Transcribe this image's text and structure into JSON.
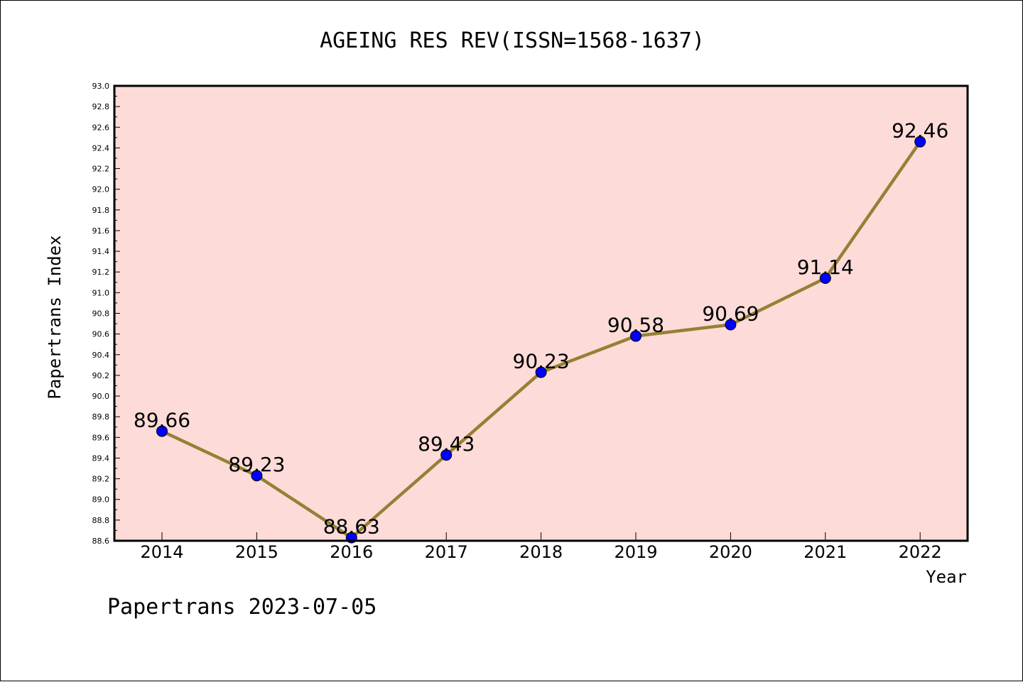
{
  "chart_data": {
    "type": "line",
    "title": "AGEING RES REV(ISSN=1568-1637)",
    "xlabel": "Year",
    "ylabel": "Papertrans Index",
    "categories": [
      "2014",
      "2015",
      "2016",
      "2017",
      "2018",
      "2019",
      "2020",
      "2021",
      "2022"
    ],
    "series": [
      {
        "values": [
          89.66,
          89.23,
          88.63,
          89.43,
          90.23,
          90.58,
          90.69,
          91.14,
          92.46
        ]
      }
    ],
    "data_labels": [
      "89.66",
      "89.23",
      "88.63",
      "89.43",
      "90.23",
      "90.58",
      "90.69",
      "91.14",
      "92.46"
    ],
    "ylim": [
      88.6,
      93.0
    ],
    "yticks": [
      "88.6",
      "88.8",
      "89.0",
      "89.2",
      "89.4",
      "89.6",
      "89.8",
      "90.0",
      "90.2",
      "90.4",
      "90.6",
      "90.8",
      "91.0",
      "91.2",
      "91.4",
      "91.6",
      "91.8",
      "92.0",
      "92.2",
      "92.4",
      "92.6",
      "92.8",
      "93.0"
    ],
    "grid": false,
    "colors": {
      "plot_background": "#fddbd8",
      "line": "#958035",
      "marker": "#0000ff"
    }
  },
  "footer": "Papertrans 2023-07-05"
}
